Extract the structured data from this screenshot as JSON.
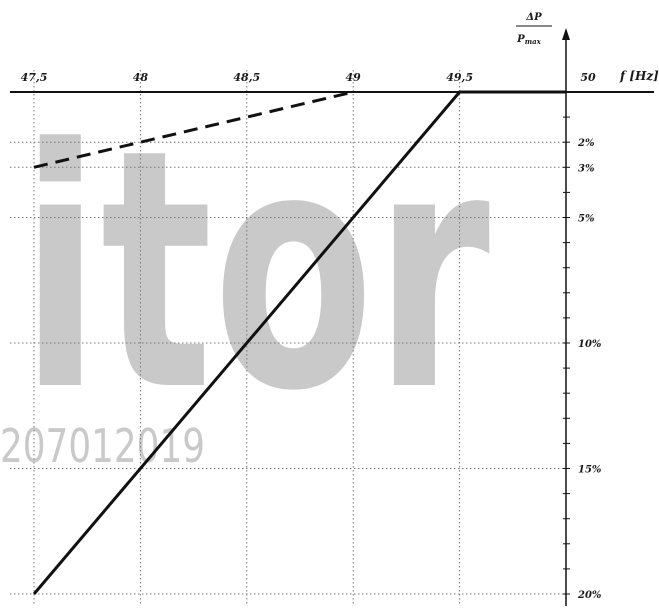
{
  "header_text": "",
  "watermark": {
    "word": "itor",
    "code": "207012019"
  },
  "colors": {
    "line": "#111111",
    "grid": "#777777",
    "watermark": "#c9c9c9"
  },
  "y_axis_label": {
    "numerator": "ΔP",
    "denominator": "P",
    "denominator_sub": "max"
  },
  "chart_data": {
    "type": "line",
    "title": "",
    "xlabel": "f [Hz]",
    "ylabel": "ΔP/Pmax",
    "x_ticks": [
      "47,5",
      "48",
      "48,5",
      "49",
      "49,5",
      "50"
    ],
    "x_tick_values": [
      47.5,
      48,
      48.5,
      49,
      49.5,
      50
    ],
    "y_ticks": [
      "2%",
      "3%",
      "5%",
      "10%",
      "15%",
      "20%"
    ],
    "y_tick_values": [
      2,
      3,
      5,
      10,
      15,
      20
    ],
    "xlim": [
      47.5,
      50
    ],
    "ylim": [
      0,
      20
    ],
    "y_inverted": true,
    "grid": "dotted",
    "series": [
      {
        "style": "solid",
        "x": [
          47.5,
          49.5,
          50
        ],
        "y": [
          20,
          0,
          0
        ]
      },
      {
        "style": "dashed",
        "x": [
          47.5,
          49
        ],
        "y": [
          3,
          0
        ]
      }
    ]
  }
}
